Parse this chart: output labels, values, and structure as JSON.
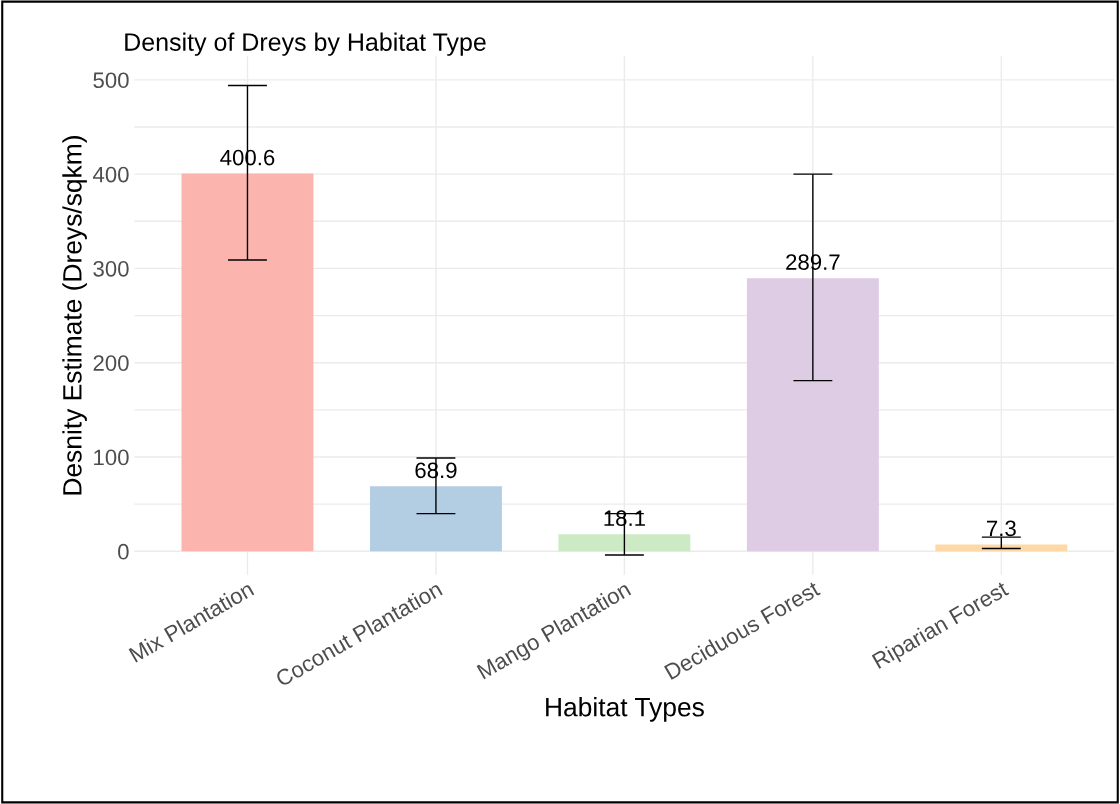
{
  "chart_data": {
    "type": "bar",
    "title": "Density of Dreys by Habitat Type",
    "xlabel": "Habitat Types",
    "ylabel": "Desnity Estimate (Dreys/sqkm)",
    "categories": [
      "Mix Plantation",
      "Coconut Plantation",
      "Mango Plantation",
      "Deciduous Forest",
      "Riparian Forest"
    ],
    "values": [
      400.6,
      68.9,
      18.1,
      289.7,
      7.3
    ],
    "colors": [
      "#fbb4ae",
      "#b3cde3",
      "#ccebc5",
      "#decbe4",
      "#fed9a6"
    ],
    "errors": [
      [
        309,
        494
      ],
      [
        40,
        99
      ],
      [
        -4,
        40
      ],
      [
        181,
        400
      ],
      [
        3,
        15
      ]
    ],
    "data_labels": true,
    "ylim": [
      -25,
      525
    ],
    "yticks": [
      0,
      100,
      200,
      300,
      400,
      500
    ],
    "grid": true,
    "legend": false
  }
}
